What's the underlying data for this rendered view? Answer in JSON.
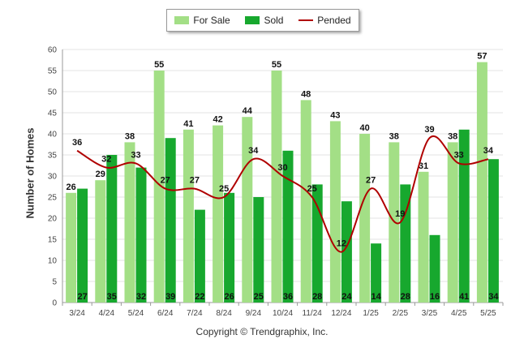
{
  "chart_data": {
    "type": "bar",
    "categories": [
      "3/24",
      "4/24",
      "5/24",
      "6/24",
      "7/24",
      "8/24",
      "9/24",
      "10/24",
      "11/24",
      "12/24",
      "1/25",
      "2/25",
      "3/25",
      "4/25",
      "5/25"
    ],
    "series": [
      {
        "name": "For Sale",
        "kind": "bar",
        "color": "#a3df86",
        "values": [
          26,
          29,
          38,
          55,
          41,
          42,
          44,
          55,
          48,
          43,
          40,
          38,
          31,
          38,
          57
        ]
      },
      {
        "name": "Sold",
        "kind": "bar",
        "color": "#17a82e",
        "values": [
          27,
          35,
          32,
          39,
          22,
          26,
          25,
          36,
          28,
          24,
          14,
          28,
          16,
          41,
          34
        ]
      },
      {
        "name": "Pended",
        "kind": "line",
        "color": "#b00000",
        "values": [
          36,
          32,
          33,
          27,
          27,
          25,
          34,
          30,
          25,
          12,
          27,
          19,
          39,
          33,
          34
        ]
      }
    ],
    "ylabel": "Number of Homes",
    "ylim": [
      0,
      60
    ],
    "yticks": [
      0,
      5,
      10,
      15,
      20,
      25,
      30,
      35,
      40,
      45,
      50,
      55,
      60
    ],
    "grid": true,
    "legend_position": "top-center"
  },
  "footer": {
    "copyright": "Copyright © Trendgraphix, Inc."
  }
}
